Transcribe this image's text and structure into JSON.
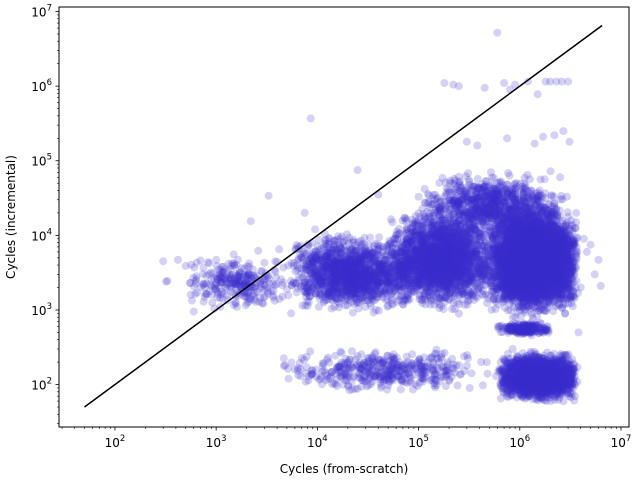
{
  "chart_data": {
    "type": "scatter",
    "title": "",
    "xlabel": "Cycles (from-scratch)",
    "ylabel": "Cycles (incremental)",
    "xscale": "log",
    "yscale": "log",
    "xlim": [
      28,
      12000000
    ],
    "ylim": [
      27,
      11500000
    ],
    "xticks": [
      {
        "value": 100,
        "base": "10",
        "exp": "2"
      },
      {
        "value": 1000,
        "base": "10",
        "exp": "3"
      },
      {
        "value": 10000,
        "base": "10",
        "exp": "4"
      },
      {
        "value": 100000,
        "base": "10",
        "exp": "5"
      },
      {
        "value": 1000000,
        "base": "10",
        "exp": "6"
      },
      {
        "value": 10000000,
        "base": "10",
        "exp": "7"
      }
    ],
    "yticks": [
      {
        "value": 100,
        "base": "10",
        "exp": "2"
      },
      {
        "value": 1000,
        "base": "10",
        "exp": "3"
      },
      {
        "value": 10000,
        "base": "10",
        "exp": "4"
      },
      {
        "value": 100000,
        "base": "10",
        "exp": "5"
      },
      {
        "value": 1000000,
        "base": "10",
        "exp": "6"
      },
      {
        "value": 10000000,
        "base": "10",
        "exp": "7"
      }
    ],
    "grid": false,
    "legend": "none",
    "point_color": "#3a2ccc",
    "point_alpha": 0.22,
    "line_color": "#000000",
    "series": [
      {
        "kind": "line",
        "x": [
          50,
          6500000
        ],
        "y": [
          50,
          6500000
        ]
      },
      {
        "kind": "scatter",
        "points": [
          [
            300,
            4500
          ],
          [
            320,
            2400
          ],
          [
            330,
            2450
          ],
          [
            420,
            4700
          ],
          [
            500,
            3900
          ],
          [
            550,
            2300
          ],
          [
            560,
            1600
          ],
          [
            600,
            950
          ],
          [
            700,
            4600
          ],
          [
            800,
            2900
          ],
          [
            900,
            1600
          ],
          [
            1000,
            4700
          ],
          [
            1100,
            1100
          ],
          [
            1200,
            3500
          ],
          [
            1300,
            2600
          ],
          [
            1500,
            4200
          ],
          [
            1700,
            2100
          ],
          [
            1900,
            3600
          ],
          [
            2100,
            1300
          ],
          [
            2200,
            15500
          ],
          [
            2500,
            2300
          ],
          [
            2600,
            6200
          ],
          [
            3000,
            4300
          ],
          [
            3300,
            34000
          ],
          [
            3500,
            1800
          ],
          [
            4000,
            4400
          ],
          [
            4200,
            6500
          ],
          [
            5000,
            1900
          ],
          [
            5200,
            120
          ],
          [
            5500,
            900
          ],
          [
            6000,
            160
          ],
          [
            6500,
            4800
          ],
          [
            7000,
            3600
          ],
          [
            7500,
            20000
          ],
          [
            8000,
            7000
          ],
          [
            8500,
            3800
          ],
          [
            8600,
            370000
          ],
          [
            9000,
            140
          ],
          [
            9500,
            12000
          ],
          [
            10000,
            3000
          ],
          [
            11000,
            2200
          ],
          [
            12000,
            1500
          ],
          [
            14000,
            5000
          ],
          [
            15000,
            140
          ],
          [
            17000,
            9000
          ],
          [
            18000,
            100
          ],
          [
            20000,
            2600
          ],
          [
            22000,
            280
          ],
          [
            25000,
            75000
          ],
          [
            28000,
            1900
          ],
          [
            30000,
            150
          ],
          [
            32000,
            7500
          ],
          [
            35000,
            110
          ],
          [
            38000,
            1000
          ],
          [
            40000,
            35000
          ],
          [
            45000,
            3500
          ],
          [
            50000,
            120
          ],
          [
            55000,
            15000
          ],
          [
            60000,
            4600
          ],
          [
            65000,
            200
          ],
          [
            70000,
            1200
          ],
          [
            75000,
            140
          ],
          [
            80000,
            3000
          ],
          [
            90000,
            9000
          ],
          [
            100000,
            33000
          ],
          [
            110000,
            120
          ],
          [
            120000,
            1800
          ],
          [
            140000,
            7000
          ],
          [
            160000,
            200
          ],
          [
            180000,
            1100000
          ],
          [
            200000,
            20000
          ],
          [
            220000,
            1050000
          ],
          [
            250000,
            1000000
          ],
          [
            280000,
            3500
          ],
          [
            300000,
            180000
          ],
          [
            320000,
            90
          ],
          [
            350000,
            45000
          ],
          [
            380000,
            160000
          ],
          [
            420000,
            9500
          ],
          [
            450000,
            950000
          ],
          [
            480000,
            140
          ],
          [
            520000,
            70000
          ],
          [
            560000,
            2000
          ],
          [
            600000,
            5200000
          ],
          [
            620000,
            600
          ],
          [
            650000,
            65
          ],
          [
            700000,
            1100000
          ],
          [
            750000,
            200000
          ],
          [
            800000,
            900000
          ],
          [
            850000,
            300
          ],
          [
            900000,
            1050000
          ],
          [
            1000000,
            25000
          ],
          [
            1100000,
            80
          ],
          [
            1200000,
            1150000
          ],
          [
            1300000,
            500
          ],
          [
            1400000,
            170000
          ],
          [
            1500000,
            780000
          ],
          [
            1600000,
            8000
          ],
          [
            1700000,
            210000
          ],
          [
            1800000,
            1150000
          ],
          [
            1900000,
            130
          ],
          [
            2000000,
            1150000
          ],
          [
            2100000,
            3000
          ],
          [
            2200000,
            220000
          ],
          [
            2300000,
            1150000
          ],
          [
            2500000,
            60000
          ],
          [
            2600000,
            1150000
          ],
          [
            2700000,
            250000
          ],
          [
            2800000,
            900
          ],
          [
            3000000,
            1150000
          ],
          [
            3100000,
            180000
          ],
          [
            3200000,
            100
          ],
          [
            3300000,
            8000
          ],
          [
            3400000,
            1500
          ],
          [
            3500000,
            70
          ],
          [
            3600000,
            15000
          ],
          [
            3800000,
            500
          ],
          [
            4000000,
            2000
          ],
          [
            4300000,
            9000
          ],
          [
            4600000,
            6000
          ],
          [
            5000000,
            7500
          ],
          [
            5500000,
            3000
          ],
          [
            6000000,
            4700
          ],
          [
            6300000,
            2100
          ]
        ]
      }
    ],
    "clusters": [
      {
        "x": [
          500,
          5000
        ],
        "y": [
          900,
          6000
        ],
        "n": 260
      },
      {
        "x": [
          5000,
          100000
        ],
        "y": [
          800,
          12000
        ],
        "n": 1500
      },
      {
        "x": [
          50000,
          600000
        ],
        "y": [
          800,
          30000
        ],
        "n": 2200
      },
      {
        "x": [
          500000,
          3800000
        ],
        "y": [
          700,
          30000
        ],
        "n": 5500
      },
      {
        "x": [
          100000,
          3000000
        ],
        "y": [
          8000,
          80000
        ],
        "n": 900
      },
      {
        "x": [
          4000,
          600000
        ],
        "y": [
          70,
          350
        ],
        "n": 420
      },
      {
        "x": [
          600000,
          3800000
        ],
        "y": [
          55,
          300
        ],
        "n": 2200
      },
      {
        "x": [
          600000,
          2000000
        ],
        "y": [
          450,
          700
        ],
        "n": 260
      }
    ]
  }
}
